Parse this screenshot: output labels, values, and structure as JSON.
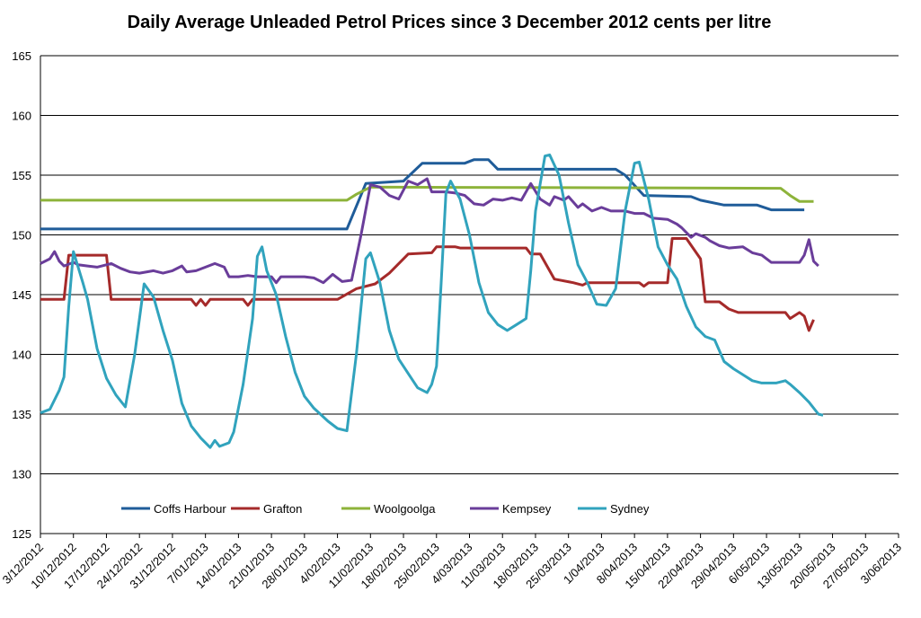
{
  "chart_data": {
    "type": "line",
    "title": "Daily Average Unleaded Petrol Prices since 3 December 2012 cents per litre",
    "ylim": [
      125,
      165
    ],
    "yticks": [
      125,
      130,
      135,
      140,
      145,
      150,
      155,
      160,
      165
    ],
    "ytick_labels": [
      "125",
      "130",
      "135",
      "140",
      "145",
      "150",
      "155",
      "160",
      "165"
    ],
    "x_start": "3/12/2012",
    "x_end": "3/06/2013",
    "xtick_labels": [
      "3/12/2012",
      "10/12/2012",
      "17/12/2012",
      "24/12/2012",
      "31/12/2012",
      "7/01/2013",
      "14/01/2013",
      "21/01/2013",
      "28/01/2013",
      "4/02/2013",
      "11/02/2013",
      "18/02/2013",
      "25/02/2013",
      "4/03/2013",
      "11/03/2013",
      "18/03/2013",
      "25/03/2013",
      "1/04/2013",
      "8/04/2013",
      "15/04/2013",
      "22/04/2013",
      "29/04/2013",
      "6/05/2013",
      "13/05/2013",
      "20/05/2013",
      "27/05/2013",
      "3/06/2013"
    ],
    "grid": true,
    "legend_position": "bottom-inside",
    "series": [
      {
        "name": "Coffs Harbour",
        "color": "#1f5c99",
        "points": [
          [
            "3/12/2012",
            150.5
          ],
          [
            "6/02/2013",
            150.5
          ],
          [
            "10/02/2013",
            154.3
          ],
          [
            "18/02/2013",
            154.5
          ],
          [
            "22/02/2013",
            156.0
          ],
          [
            "3/03/2013",
            156.0
          ],
          [
            "5/03/2013",
            156.3
          ],
          [
            "8/03/2013",
            156.3
          ],
          [
            "10/03/2013",
            155.5
          ],
          [
            "4/04/2013",
            155.5
          ],
          [
            "6/04/2013",
            155.0
          ],
          [
            "10/04/2013",
            153.3
          ],
          [
            "20/04/2013",
            153.2
          ],
          [
            "22/04/2013",
            152.9
          ],
          [
            "27/04/2013",
            152.5
          ],
          [
            "4/05/2013",
            152.5
          ],
          [
            "7/05/2013",
            152.1
          ],
          [
            "14/05/2013",
            152.1
          ]
        ]
      },
      {
        "name": "Grafton",
        "color": "#a52a2a",
        "points": [
          [
            "3/12/2012",
            144.6
          ],
          [
            "8/12/2012",
            144.6
          ],
          [
            "9/12/2012",
            148.3
          ],
          [
            "17/12/2012",
            148.3
          ],
          [
            "18/12/2012",
            144.6
          ],
          [
            "4/01/2013",
            144.6
          ],
          [
            "5/01/2013",
            144.1
          ],
          [
            "6/01/2013",
            144.6
          ],
          [
            "7/01/2013",
            144.1
          ],
          [
            "8/01/2013",
            144.6
          ],
          [
            "15/01/2013",
            144.6
          ],
          [
            "16/01/2013",
            144.1
          ],
          [
            "17/01/2013",
            144.6
          ],
          [
            "4/02/2013",
            144.6
          ],
          [
            "8/02/2013",
            145.5
          ],
          [
            "12/02/2013",
            145.9
          ],
          [
            "15/02/2013",
            146.8
          ],
          [
            "19/02/2013",
            148.4
          ],
          [
            "24/02/2013",
            148.5
          ],
          [
            "25/02/2013",
            149.0
          ],
          [
            "1/03/2013",
            149.0
          ],
          [
            "2/03/2013",
            148.9
          ],
          [
            "16/03/2013",
            148.9
          ],
          [
            "17/03/2013",
            148.4
          ],
          [
            "19/03/2013",
            148.4
          ],
          [
            "22/03/2013",
            146.3
          ],
          [
            "26/03/2013",
            146.0
          ],
          [
            "28/03/2013",
            145.8
          ],
          [
            "29/03/2013",
            146.0
          ],
          [
            "9/04/2013",
            146.0
          ],
          [
            "10/04/2013",
            145.7
          ],
          [
            "11/04/2013",
            146.0
          ],
          [
            "15/04/2013",
            146.0
          ],
          [
            "16/04/2013",
            149.7
          ],
          [
            "19/04/2013",
            149.7
          ],
          [
            "22/04/2013",
            148.0
          ],
          [
            "23/04/2013",
            144.4
          ],
          [
            "26/04/2013",
            144.4
          ],
          [
            "28/04/2013",
            143.8
          ],
          [
            "30/04/2013",
            143.5
          ],
          [
            "10/05/2013",
            143.5
          ],
          [
            "11/05/2013",
            143.0
          ],
          [
            "13/05/2013",
            143.5
          ],
          [
            "14/05/2013",
            143.2
          ],
          [
            "15/05/2013",
            142.0
          ],
          [
            "16/05/2013",
            142.9
          ]
        ]
      },
      {
        "name": "Woolgoolga",
        "color": "#8db33a",
        "points": [
          [
            "3/12/2012",
            152.9
          ],
          [
            "6/02/2013",
            152.9
          ],
          [
            "8/02/2013",
            153.4
          ],
          [
            "11/02/2013",
            154.0
          ],
          [
            "9/05/2013",
            153.9
          ],
          [
            "11/05/2013",
            153.3
          ],
          [
            "13/05/2013",
            152.8
          ],
          [
            "16/05/2013",
            152.8
          ]
        ]
      },
      {
        "name": "Kempsey",
        "color": "#6a3d9a",
        "points": [
          [
            "3/12/2012",
            147.6
          ],
          [
            "5/12/2012",
            148.0
          ],
          [
            "6/12/2012",
            148.6
          ],
          [
            "7/12/2012",
            147.8
          ],
          [
            "8/12/2012",
            147.4
          ],
          [
            "10/12/2012",
            147.7
          ],
          [
            "11/12/2012",
            147.5
          ],
          [
            "13/12/2012",
            147.4
          ],
          [
            "15/12/2012",
            147.3
          ],
          [
            "18/12/2012",
            147.6
          ],
          [
            "20/12/2012",
            147.2
          ],
          [
            "22/12/2012",
            146.9
          ],
          [
            "24/12/2012",
            146.8
          ],
          [
            "27/12/2012",
            147.0
          ],
          [
            "29/12/2012",
            146.8
          ],
          [
            "31/12/2012",
            147.0
          ],
          [
            "2/01/2013",
            147.4
          ],
          [
            "3/01/2013",
            146.9
          ],
          [
            "5/01/2013",
            147.0
          ],
          [
            "7/01/2013",
            147.3
          ],
          [
            "9/01/2013",
            147.6
          ],
          [
            "11/01/2013",
            147.3
          ],
          [
            "12/01/2013",
            146.5
          ],
          [
            "14/01/2013",
            146.5
          ],
          [
            "16/01/2013",
            146.6
          ],
          [
            "18/01/2013",
            146.5
          ],
          [
            "21/01/2013",
            146.5
          ],
          [
            "22/01/2013",
            146.0
          ],
          [
            "23/01/2013",
            146.5
          ],
          [
            "28/01/2013",
            146.5
          ],
          [
            "30/01/2013",
            146.4
          ],
          [
            "1/02/2013",
            146.0
          ],
          [
            "3/02/2013",
            146.7
          ],
          [
            "5/02/2013",
            146.1
          ],
          [
            "7/02/2013",
            146.2
          ],
          [
            "9/02/2013",
            150.0
          ],
          [
            "11/02/2013",
            154.2
          ],
          [
            "13/02/2013",
            154.0
          ],
          [
            "15/02/2013",
            153.3
          ],
          [
            "17/02/2013",
            153.0
          ],
          [
            "19/02/2013",
            154.5
          ],
          [
            "21/02/2013",
            154.2
          ],
          [
            "23/02/2013",
            154.7
          ],
          [
            "24/02/2013",
            153.6
          ],
          [
            "27/02/2013",
            153.6
          ],
          [
            "1/03/2013",
            153.5
          ],
          [
            "3/03/2013",
            153.3
          ],
          [
            "5/03/2013",
            152.6
          ],
          [
            "7/03/2013",
            152.5
          ],
          [
            "9/03/2013",
            153.0
          ],
          [
            "11/03/2013",
            152.9
          ],
          [
            "13/03/2013",
            153.1
          ],
          [
            "15/03/2013",
            152.9
          ],
          [
            "17/03/2013",
            154.3
          ],
          [
            "19/03/2013",
            153.0
          ],
          [
            "21/03/2013",
            152.5
          ],
          [
            "22/03/2013",
            153.2
          ],
          [
            "24/03/2013",
            152.9
          ],
          [
            "25/03/2013",
            153.2
          ],
          [
            "27/03/2013",
            152.3
          ],
          [
            "28/03/2013",
            152.6
          ],
          [
            "30/03/2013",
            152.0
          ],
          [
            "1/04/2013",
            152.3
          ],
          [
            "3/04/2013",
            152.0
          ],
          [
            "6/04/2013",
            152.0
          ],
          [
            "8/04/2013",
            151.8
          ],
          [
            "10/04/2013",
            151.8
          ],
          [
            "12/04/2013",
            151.4
          ],
          [
            "15/04/2013",
            151.3
          ],
          [
            "17/04/2013",
            150.9
          ],
          [
            "18/04/2013",
            150.6
          ],
          [
            "20/04/2013",
            149.8
          ],
          [
            "21/04/2013",
            150.1
          ],
          [
            "23/04/2013",
            149.8
          ],
          [
            "24/04/2013",
            149.5
          ],
          [
            "26/04/2013",
            149.1
          ],
          [
            "28/04/2013",
            148.9
          ],
          [
            "1/05/2013",
            149.0
          ],
          [
            "3/05/2013",
            148.5
          ],
          [
            "5/05/2013",
            148.3
          ],
          [
            "7/05/2013",
            147.7
          ],
          [
            "11/05/2013",
            147.7
          ],
          [
            "13/05/2013",
            147.7
          ],
          [
            "14/05/2013",
            148.3
          ],
          [
            "15/05/2013",
            149.6
          ],
          [
            "16/05/2013",
            147.8
          ],
          [
            "17/05/2013",
            147.4
          ]
        ]
      },
      {
        "name": "Sydney",
        "color": "#31a3bd",
        "points": [
          [
            "3/12/2012",
            135.1
          ],
          [
            "5/12/2012",
            135.4
          ],
          [
            "7/12/2012",
            137.0
          ],
          [
            "8/12/2012",
            138.1
          ],
          [
            "9/12/2012",
            144.0
          ],
          [
            "10/12/2012",
            148.6
          ],
          [
            "12/12/2012",
            146.0
          ],
          [
            "13/12/2012",
            144.6
          ],
          [
            "15/12/2012",
            140.5
          ],
          [
            "17/12/2012",
            138.0
          ],
          [
            "19/12/2012",
            136.6
          ],
          [
            "21/12/2012",
            135.6
          ],
          [
            "23/12/2012",
            140.0
          ],
          [
            "25/12/2012",
            145.9
          ],
          [
            "27/12/2012",
            144.8
          ],
          [
            "29/12/2012",
            142.0
          ],
          [
            "31/12/2012",
            139.5
          ],
          [
            "2/01/2013",
            135.9
          ],
          [
            "4/01/2013",
            134.0
          ],
          [
            "6/01/2013",
            133.0
          ],
          [
            "8/01/2013",
            132.2
          ],
          [
            "9/01/2013",
            132.8
          ],
          [
            "10/01/2013",
            132.3
          ],
          [
            "12/01/2013",
            132.6
          ],
          [
            "13/01/2013",
            133.5
          ],
          [
            "15/01/2013",
            137.5
          ],
          [
            "17/01/2013",
            143.0
          ],
          [
            "18/01/2013",
            148.2
          ],
          [
            "19/01/2013",
            149.0
          ],
          [
            "20/01/2013",
            147.0
          ],
          [
            "22/01/2013",
            145.0
          ],
          [
            "24/01/2013",
            141.5
          ],
          [
            "26/01/2013",
            138.5
          ],
          [
            "28/01/2013",
            136.5
          ],
          [
            "30/01/2013",
            135.5
          ],
          [
            "2/02/2013",
            134.4
          ],
          [
            "4/02/2013",
            133.8
          ],
          [
            "6/02/2013",
            133.6
          ],
          [
            "8/02/2013",
            140.0
          ],
          [
            "10/02/2013",
            148.0
          ],
          [
            "11/02/2013",
            148.5
          ],
          [
            "13/02/2013",
            146.0
          ],
          [
            "15/02/2013",
            142.0
          ],
          [
            "17/02/2013",
            139.6
          ],
          [
            "19/02/2013",
            138.4
          ],
          [
            "21/02/2013",
            137.2
          ],
          [
            "23/02/2013",
            136.8
          ],
          [
            "24/02/2013",
            137.5
          ],
          [
            "25/02/2013",
            139.0
          ],
          [
            "26/02/2013",
            146.0
          ],
          [
            "27/02/2013",
            153.5
          ],
          [
            "28/02/2013",
            154.5
          ],
          [
            "2/03/2013",
            153.0
          ],
          [
            "4/03/2013",
            150.0
          ],
          [
            "6/03/2013",
            146.0
          ],
          [
            "8/03/2013",
            143.5
          ],
          [
            "10/03/2013",
            142.5
          ],
          [
            "12/03/2013",
            142.0
          ],
          [
            "14/03/2013",
            142.5
          ],
          [
            "16/03/2013",
            143.0
          ],
          [
            "17/03/2013",
            147.0
          ],
          [
            "18/03/2013",
            152.0
          ],
          [
            "20/03/2013",
            156.6
          ],
          [
            "21/03/2013",
            156.7
          ],
          [
            "23/03/2013",
            155.0
          ],
          [
            "25/03/2013",
            151.0
          ],
          [
            "27/03/2013",
            147.5
          ],
          [
            "29/03/2013",
            146.0
          ],
          [
            "31/03/2013",
            144.2
          ],
          [
            "2/04/2013",
            144.1
          ],
          [
            "4/04/2013",
            145.5
          ],
          [
            "6/04/2013",
            152.0
          ],
          [
            "8/04/2013",
            156.0
          ],
          [
            "9/04/2013",
            156.1
          ],
          [
            "11/04/2013",
            153.0
          ],
          [
            "13/04/2013",
            149.0
          ],
          [
            "15/04/2013",
            147.5
          ],
          [
            "17/04/2013",
            146.3
          ],
          [
            "19/04/2013",
            144.0
          ],
          [
            "21/04/2013",
            142.3
          ],
          [
            "23/04/2013",
            141.5
          ],
          [
            "25/04/2013",
            141.2
          ],
          [
            "27/04/2013",
            139.4
          ],
          [
            "29/04/2013",
            138.8
          ],
          [
            "1/05/2013",
            138.3
          ],
          [
            "3/05/2013",
            137.8
          ],
          [
            "5/05/2013",
            137.6
          ],
          [
            "8/05/2013",
            137.6
          ],
          [
            "10/05/2013",
            137.8
          ],
          [
            "11/05/2013",
            137.5
          ],
          [
            "13/05/2013",
            136.8
          ],
          [
            "15/05/2013",
            136.0
          ],
          [
            "17/05/2013",
            135.0
          ],
          [
            "18/05/2013",
            134.9
          ]
        ]
      }
    ]
  }
}
